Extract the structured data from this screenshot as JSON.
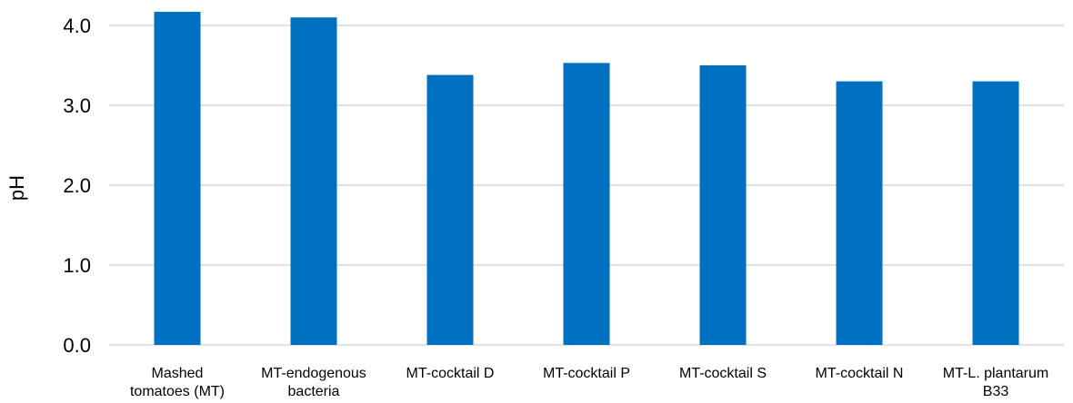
{
  "chart_data": {
    "type": "bar",
    "categories": [
      [
        "Mashed",
        "tomatoes (MT)"
      ],
      [
        "MT-endogenous",
        "bacteria"
      ],
      [
        "MT-cocktail D"
      ],
      [
        "MT-cocktail P"
      ],
      [
        "MT-cocktail S"
      ],
      [
        "MT-cocktail N"
      ],
      [
        "MT-L. plantarum",
        "B33"
      ]
    ],
    "values": [
      4.17,
      4.1,
      3.38,
      3.53,
      3.5,
      3.3,
      3.3
    ],
    "title": "",
    "xlabel": "",
    "ylabel": "pH",
    "ylim": [
      0,
      4.0
    ],
    "yticks": [
      "0.0",
      "1.0",
      "2.0",
      "3.0",
      "4.0"
    ],
    "grid": true,
    "legend": "none",
    "bar_color": "#0070C0",
    "grid_color": "#D9D9D9"
  }
}
